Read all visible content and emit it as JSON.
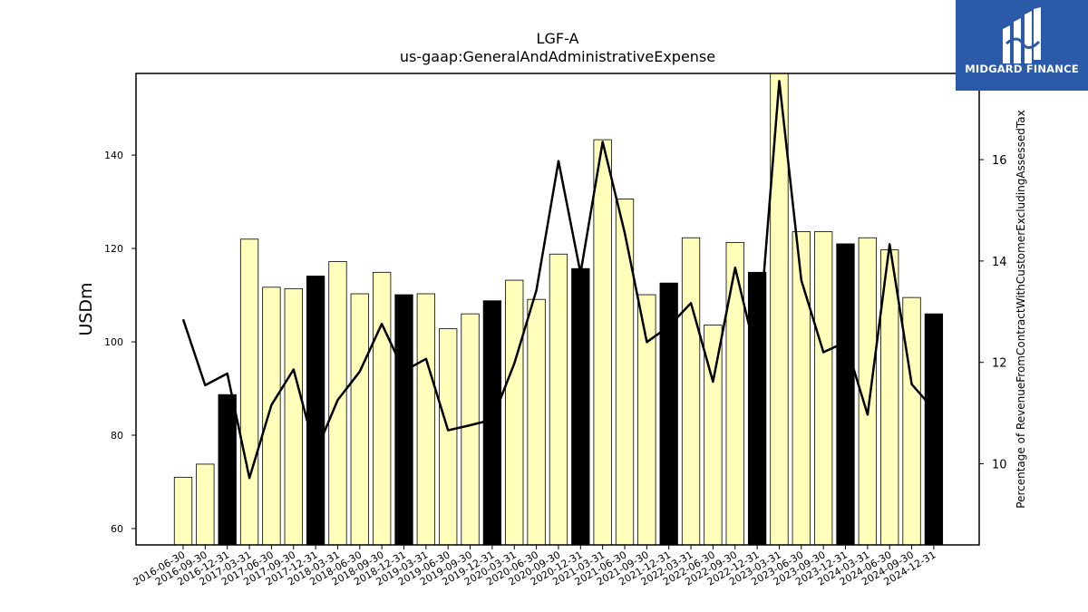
{
  "brand": {
    "name": "MIDGARD FINANCE",
    "bg_color": "#2b5ba8"
  },
  "chart_data": {
    "type": "bar",
    "title": "LGF-A",
    "subtitle": "us-gaap:GeneralAndAdministrativeExpense",
    "ylabel": "USDm",
    "y2label": "Percentage of RevenueFromContractWithCustomerExcludingAssessedTax",
    "ylim": [
      56.5,
      157.5
    ],
    "y2lim": [
      8.4,
      17.7
    ],
    "yticks": [
      60,
      80,
      100,
      120,
      140
    ],
    "y2ticks": [
      10,
      12,
      14,
      16
    ],
    "grid": false,
    "categories": [
      "2016-06-30",
      "2016-09-30",
      "2016-12-31",
      "2017-03-31",
      "2017-06-30",
      "2017-09-30",
      "2017-12-31",
      "2018-03-31",
      "2018-06-30",
      "2018-09-30",
      "2018-12-31",
      "2019-03-31",
      "2019-06-30",
      "2019-09-30",
      "2019-12-31",
      "2020-03-31",
      "2020-06-30",
      "2020-09-30",
      "2020-12-31",
      "2021-03-31",
      "2021-06-30",
      "2021-09-30",
      "2021-12-31",
      "2022-03-31",
      "2022-06-30",
      "2022-09-30",
      "2022-12-31",
      "2023-03-31",
      "2023-06-30",
      "2023-09-30",
      "2023-12-31",
      "2024-03-31",
      "2024-06-30",
      "2024-09-30",
      "2024-12-31"
    ],
    "series": [
      {
        "kind": "bar",
        "axis": "left",
        "values": [
          71.0,
          73.8,
          88.7,
          122.0,
          111.7,
          111.4,
          114.1,
          117.2,
          110.3,
          114.9,
          110.1,
          110.3,
          102.8,
          106.0,
          108.8,
          113.2,
          109.1,
          118.8,
          115.7,
          143.3,
          130.6,
          110.1,
          112.6,
          122.3,
          103.6,
          121.3,
          114.9,
          158.0,
          123.6,
          123.6,
          121.0,
          122.3,
          119.7,
          109.5,
          106.0
        ],
        "colors": [
          "#ffffbb",
          "#ffffbb",
          "#000000",
          "#ffffbb",
          "#ffffbb",
          "#ffffbb",
          "#000000",
          "#ffffbb",
          "#ffffbb",
          "#ffffbb",
          "#000000",
          "#ffffbb",
          "#ffffbb",
          "#ffffbb",
          "#000000",
          "#ffffbb",
          "#ffffbb",
          "#ffffbb",
          "#000000",
          "#ffffbb",
          "#ffffbb",
          "#ffffbb",
          "#000000",
          "#ffffbb",
          "#ffffbb",
          "#ffffbb",
          "#000000",
          "#ffffbb",
          "#ffffbb",
          "#ffffbb",
          "#000000",
          "#ffffbb",
          "#ffffbb",
          "#ffffbb",
          "#000000"
        ]
      },
      {
        "kind": "line",
        "axis": "right",
        "color": "#000000",
        "values": [
          12.85,
          11.55,
          11.78,
          9.72,
          11.16,
          11.86,
          10.22,
          11.26,
          11.82,
          12.76,
          11.83,
          12.07,
          10.66,
          10.76,
          10.87,
          11.98,
          13.42,
          15.97,
          13.76,
          16.35,
          14.56,
          12.4,
          12.71,
          13.17,
          11.62,
          13.87,
          12.07,
          17.55,
          13.62,
          12.2,
          12.4,
          10.97,
          14.33,
          11.57,
          11.07
        ]
      }
    ]
  }
}
